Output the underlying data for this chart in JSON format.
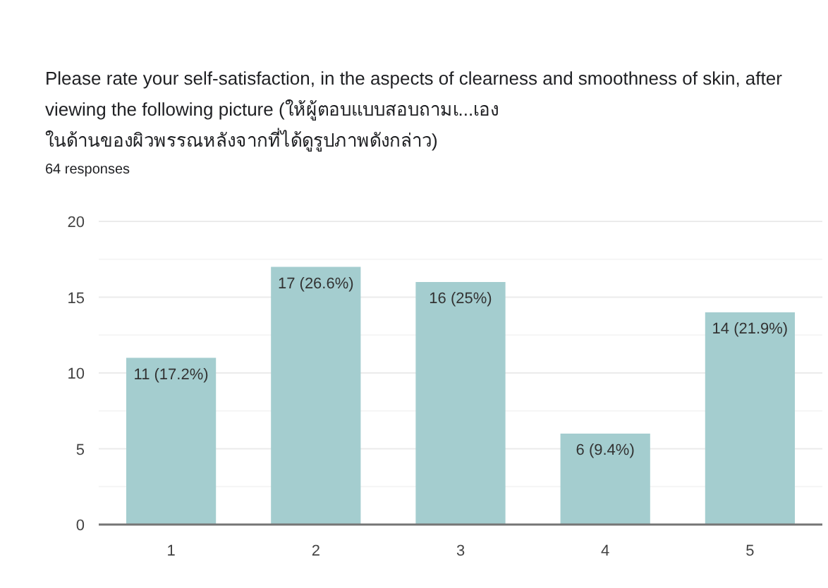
{
  "chart_data": {
    "type": "bar",
    "title": "Please rate your self-satisfaction, in the aspects of clearness and smoothness of skin, after viewing the following picture (ให้ผู้ตอบแบบสอบถามเ...เอง ในด้านของผิวพรรณหลังจากที่ได้ดูรูปภาพดังกล่าว)",
    "subtitle": "64 responses",
    "categories": [
      "1",
      "2",
      "3",
      "4",
      "5"
    ],
    "values": [
      11,
      17,
      16,
      6,
      14
    ],
    "value_labels": [
      "11 (17.2%)",
      "17 (26.6%)",
      "16 (25%)",
      "6 (9.4%)",
      "14 (21.9%)"
    ],
    "color": "#a4cdcf",
    "ylim": [
      0,
      20
    ],
    "yticks": [
      0,
      {
        "value": 2.5,
        "label": null
      },
      5,
      {
        "value": 7.5,
        "label": null
      },
      10,
      {
        "value": 12.5,
        "label": null
      },
      15,
      {
        "value": 17.5,
        "label": null
      },
      20
    ],
    "grid": "y"
  }
}
